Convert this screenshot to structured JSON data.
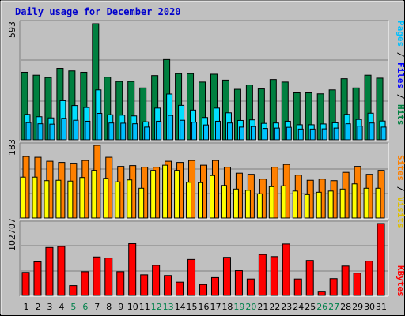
{
  "title": "Daily usage for December 2020",
  "colors": {
    "background": "#c0c0c0",
    "hits": "#008040",
    "files": "#00e0ff",
    "pages": "#00c0ff",
    "visits": "#ffff00",
    "sites": "#ff8000",
    "kbytes": "#ff0000",
    "title": "#0000cc",
    "weekend": "#00804a",
    "weekday": "#000000"
  },
  "chart_data": [
    {
      "type": "bar",
      "panel": "hits-files-pages",
      "max_label": "593",
      "ylim": [
        0,
        593
      ],
      "side_label": {
        "parts": [
          "Pages",
          " / ",
          "Files",
          " / ",
          "Hits"
        ],
        "colors": [
          "#00c0ff",
          "#000000",
          "#0000ff",
          "#000000",
          "#008040"
        ]
      },
      "categories": [
        "1",
        "2",
        "3",
        "4",
        "5",
        "6",
        "7",
        "8",
        "9",
        "10",
        "11",
        "12",
        "13",
        "14",
        "15",
        "16",
        "17",
        "18",
        "19",
        "20",
        "21",
        "22",
        "23",
        "24",
        "25",
        "26",
        "27",
        "28",
        "29",
        "30",
        "31"
      ],
      "series": [
        {
          "name": "Hits",
          "values": [
            345,
            330,
            318,
            365,
            352,
            345,
            593,
            320,
            298,
            298,
            265,
            328,
            410,
            338,
            338,
            295,
            335,
            305,
            258,
            280,
            260,
            308,
            295,
            240,
            240,
            235,
            255,
            312,
            265,
            330,
            315
          ]
        },
        {
          "name": "Files",
          "values": [
            130,
            118,
            112,
            200,
            175,
            165,
            255,
            128,
            126,
            122,
            92,
            162,
            234,
            176,
            152,
            114,
            162,
            138,
            99,
            102,
            84,
            86,
            95,
            77,
            77,
            81,
            87,
            130,
            104,
            136,
            96
          ]
        },
        {
          "name": "Pages",
          "values": [
            88,
            82,
            80,
            110,
            100,
            95,
            135,
            86,
            85,
            82,
            65,
            95,
            125,
            100,
            90,
            76,
            95,
            86,
            65,
            68,
            58,
            60,
            64,
            55,
            55,
            56,
            60,
            82,
            70,
            86,
            65
          ]
        }
      ]
    },
    {
      "type": "bar",
      "panel": "visits-sites",
      "max_label": "183",
      "ylim": [
        0,
        183
      ],
      "side_label": {
        "parts": [
          "Sites",
          " / ",
          "Visits"
        ],
        "colors": [
          "#ff8000",
          "#000000",
          "#e0c000"
        ]
      },
      "categories": [
        "1",
        "2",
        "3",
        "4",
        "5",
        "6",
        "7",
        "8",
        "9",
        "10",
        "11",
        "12",
        "13",
        "14",
        "15",
        "16",
        "17",
        "18",
        "19",
        "20",
        "21",
        "22",
        "23",
        "24",
        "25",
        "26",
        "27",
        "28",
        "29",
        "30",
        "31"
      ],
      "series": [
        {
          "name": "Sites",
          "values": [
            155,
            153,
            143,
            140,
            138,
            145,
            183,
            153,
            130,
            132,
            128,
            128,
            143,
            140,
            145,
            133,
            145,
            128,
            113,
            110,
            98,
            128,
            135,
            108,
            95,
            98,
            94,
            115,
            130,
            110,
            120
          ]
        },
        {
          "name": "Visits",
          "values": [
            103,
            103,
            94,
            95,
            93,
            102,
            120,
            100,
            91,
            96,
            75,
            120,
            133,
            120,
            90,
            89,
            107,
            82,
            73,
            70,
            61,
            79,
            81,
            68,
            59,
            65,
            68,
            73,
            86,
            75,
            75
          ]
        }
      ]
    },
    {
      "type": "bar",
      "panel": "kbytes",
      "max_label": "102707",
      "ylim": [
        0,
        102707
      ],
      "side_label": {
        "parts": [
          "KBytes"
        ],
        "colors": [
          "#ff0000"
        ]
      },
      "categories": [
        "1",
        "2",
        "3",
        "4",
        "5",
        "6",
        "7",
        "8",
        "9",
        "10",
        "11",
        "12",
        "13",
        "14",
        "15",
        "16",
        "17",
        "18",
        "19",
        "20",
        "21",
        "22",
        "23",
        "24",
        "25",
        "26",
        "27",
        "28",
        "29",
        "30",
        "31"
      ],
      "series": [
        {
          "name": "KBytes",
          "values": [
            33000,
            48000,
            68500,
            70000,
            14000,
            34000,
            55000,
            53500,
            34000,
            74000,
            29500,
            43000,
            28500,
            19000,
            51500,
            15500,
            25500,
            54500,
            35500,
            23500,
            58500,
            55500,
            73500,
            23500,
            50000,
            6000,
            24000,
            42000,
            32000,
            49000,
            102707
          ]
        }
      ]
    }
  ],
  "x_axis": {
    "labels": [
      "1",
      "2",
      "3",
      "4",
      "5",
      "6",
      "7",
      "8",
      "9",
      "10",
      "11",
      "12",
      "13",
      "14",
      "15",
      "16",
      "17",
      "18",
      "19",
      "20",
      "21",
      "22",
      "23",
      "24",
      "25",
      "26",
      "27",
      "28",
      "29",
      "30",
      "31"
    ],
    "weekend": [
      false,
      false,
      false,
      false,
      true,
      true,
      false,
      false,
      false,
      false,
      false,
      true,
      true,
      false,
      false,
      false,
      false,
      false,
      true,
      true,
      false,
      false,
      false,
      false,
      false,
      true,
      true,
      false,
      false,
      false,
      false
    ]
  }
}
